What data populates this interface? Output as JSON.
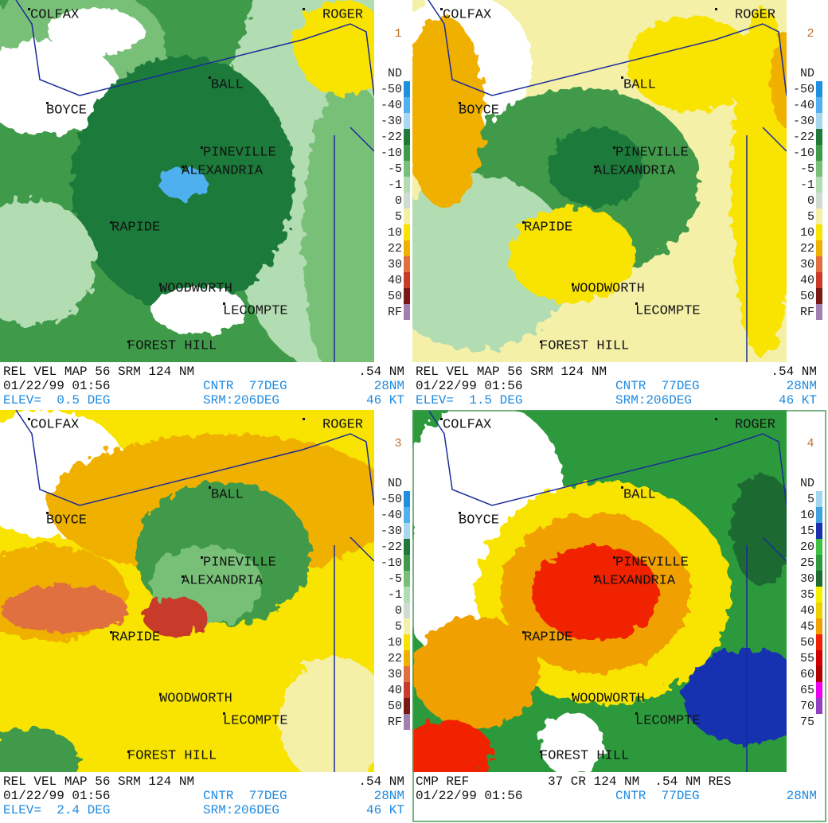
{
  "panels": [
    {
      "number": "1",
      "places": [
        "COLFAX",
        "ROGER",
        "BALL",
        "BOYCE",
        "PINEVILLE",
        "ALEXANDRIA",
        "RAPIDE",
        "WOODWORTH",
        "LECOMPTE",
        "FOREST HILL"
      ],
      "legend": [
        "ND",
        "-50",
        "-40",
        "-30",
        "-22",
        "-10",
        "-5",
        "-1",
        "0",
        "5",
        "10",
        "22",
        "30",
        "40",
        "50",
        "RF"
      ],
      "legend_colors": [
        null,
        "#1e90e0",
        "#50b0f0",
        "#a8d8f0",
        "#1f7a3a",
        "#3f9a4a",
        "#78c078",
        "#b2dcb2",
        "#d0dcd0",
        "#f4f0a8",
        "#f8e400",
        "#f0b000",
        "#e07040",
        "#c83a2a",
        "#7a1818",
        "#a080b0"
      ],
      "footer": [
        [
          "REL VEL MAP 56 SRM 124 NM",
          ".54 NM"
        ],
        [
          "01/22/99 01:56",
          "CNTR  77DEG",
          "28NM"
        ],
        [
          "ELEV=  0.5 DEG",
          "SRM:206DEG",
          "46 KT"
        ]
      ]
    },
    {
      "number": "2",
      "places": [
        "COLFAX",
        "ROGER",
        "BALL",
        "BOYCE",
        "PINEVILLE",
        "ALEXANDRIA",
        "RAPIDE",
        "WOODWORTH",
        "LECOMPTE",
        "FOREST HILL"
      ],
      "legend": [
        "ND",
        "-50",
        "-40",
        "-30",
        "-22",
        "-10",
        "-5",
        "-1",
        "0",
        "5",
        "10",
        "22",
        "30",
        "40",
        "50",
        "RF"
      ],
      "legend_colors": [
        null,
        "#1e90e0",
        "#50b0f0",
        "#a8d8f0",
        "#1f7a3a",
        "#3f9a4a",
        "#78c078",
        "#b2dcb2",
        "#d0dcd0",
        "#f4f0a8",
        "#f8e400",
        "#f0b000",
        "#e07040",
        "#c83a2a",
        "#7a1818",
        "#a080b0"
      ],
      "footer": [
        [
          "REL VEL MAP 56 SRM 124 NM",
          ".54 NM"
        ],
        [
          "01/22/99 01:56",
          "CNTR  77DEG",
          "28NM"
        ],
        [
          "ELEV=  1.5 DEG",
          "SRM:206DEG",
          "46 KT"
        ]
      ]
    },
    {
      "number": "3",
      "places": [
        "COLFAX",
        "ROGER",
        "BALL",
        "BOYCE",
        "PINEVILLE",
        "ALEXANDRIA",
        "RAPIDE",
        "WOODWORTH",
        "LECOMPTE",
        "FOREST HILL"
      ],
      "legend": [
        "ND",
        "-50",
        "-40",
        "-30",
        "-22",
        "-10",
        "-5",
        "-1",
        "0",
        "5",
        "10",
        "22",
        "30",
        "40",
        "50",
        "RF"
      ],
      "legend_colors": [
        null,
        "#1e90e0",
        "#50b0f0",
        "#a8d8f0",
        "#1f7a3a",
        "#3f9a4a",
        "#78c078",
        "#b2dcb2",
        "#d0dcd0",
        "#f4f0a8",
        "#f8e400",
        "#f0b000",
        "#e07040",
        "#c83a2a",
        "#7a1818",
        "#a080b0"
      ],
      "footer": [
        [
          "REL VEL MAP 56 SRM 124 NM",
          ".54 NM"
        ],
        [
          "01/22/99 01:56",
          "CNTR  77DEG",
          "28NM"
        ],
        [
          "ELEV=  2.4 DEG",
          "SRM:206DEG",
          "46 KT"
        ]
      ]
    },
    {
      "number": "4",
      "places": [
        "COLFAX",
        "ROGER",
        "BALL",
        "BOYCE",
        "PINEVILLE",
        "ALEXANDRIA",
        "RAPIDE",
        "WOODWORTH",
        "LECOMPTE",
        "FOREST HILL"
      ],
      "legend": [
        "ND",
        "5",
        "10",
        "15",
        "20",
        "25",
        "30",
        "35",
        "40",
        "45",
        "50",
        "55",
        "60",
        "65",
        "70",
        "75"
      ],
      "legend_colors": [
        null,
        "#a0d8f0",
        "#40a0e0",
        "#1830b0",
        "#40c040",
        "#2c9a3c",
        "#1e6a30",
        "#f4f000",
        "#f0d000",
        "#f0a000",
        "#f02000",
        "#d00000",
        "#b00000",
        "#f000f0",
        "#9040c0",
        "#ffffff"
      ],
      "footer": [
        [
          "CMP REF",
          "37 CR 124 NM  .54 NM RES"
        ],
        [
          "01/22/99 01:56",
          "CNTR  77DEG",
          "28NM"
        ]
      ]
    }
  ]
}
